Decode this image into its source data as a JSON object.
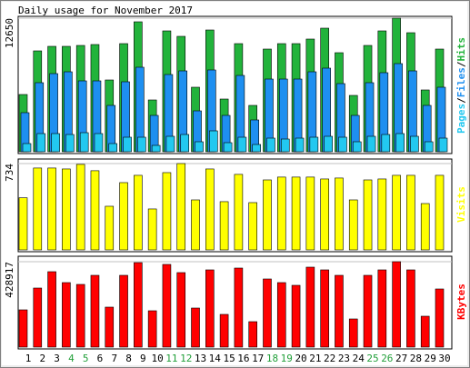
{
  "chart_data": [
    {
      "type": "bar",
      "title": "Daily usage for November 2017",
      "categories": [
        "1",
        "2",
        "3",
        "4",
        "5",
        "6",
        "7",
        "8",
        "9",
        "10",
        "11",
        "12",
        "13",
        "14",
        "15",
        "16",
        "17",
        "18",
        "19",
        "20",
        "21",
        "22",
        "23",
        "24",
        "25",
        "26",
        "27",
        "28",
        "29",
        "30"
      ],
      "ylim": [
        0,
        12650
      ],
      "yticks": [
        12650
      ],
      "legend_separator": "/",
      "series": [
        {
          "name": "Hits",
          "color": "#22b33b",
          "values": [
            5421,
            9552,
            9982,
            9982,
            10068,
            10154,
            6798,
            10240,
            12306,
            4905,
            11445,
            10929,
            6110,
            11531,
            4991,
            10240,
            4389,
            9724,
            10240,
            10240,
            10671,
            11703,
            9380,
            5335,
            10068,
            11445,
            12650,
            11273,
            5852,
            9724
          ]
        },
        {
          "name": "Files",
          "color": "#1e8ff0",
          "values": [
            3700,
            6540,
            7400,
            7572,
            6712,
            6712,
            4389,
            6626,
            8003,
            3442,
            7314,
            7658,
            3872,
            7745,
            3442,
            7228,
            3012,
            6884,
            6884,
            6884,
            7572,
            7917,
            6454,
            3442,
            6540,
            7486,
            8347,
            7658,
            4389,
            6110
          ]
        },
        {
          "name": "Pages",
          "color": "#22c8f0",
          "values": [
            775,
            1721,
            1721,
            1635,
            1807,
            1721,
            775,
            1377,
            1377,
            602,
            1463,
            1635,
            947,
            1979,
            860,
            1377,
            688,
            1291,
            1205,
            1291,
            1377,
            1463,
            1377,
            947,
            1463,
            1635,
            1721,
            1463,
            947,
            1291
          ]
        }
      ]
    },
    {
      "type": "bar",
      "categories": [
        "1",
        "2",
        "3",
        "4",
        "5",
        "6",
        "7",
        "8",
        "9",
        "10",
        "11",
        "12",
        "13",
        "14",
        "15",
        "16",
        "17",
        "18",
        "19",
        "20",
        "21",
        "22",
        "23",
        "24",
        "25",
        "26",
        "27",
        "28",
        "29",
        "30"
      ],
      "ylim": [
        0,
        734
      ],
      "yticks": [
        734
      ],
      "series": [
        {
          "name": "Visits",
          "color": "#ffff00",
          "values": [
            443,
            696,
            696,
            688,
            727,
            673,
            371,
            572,
            634,
            348,
            657,
            734,
            425,
            688,
            410,
            642,
            402,
            595,
            619,
            619,
            619,
            603,
            611,
            425,
            595,
            603,
            634,
            634,
            394,
            634
          ]
        }
      ]
    },
    {
      "type": "bar",
      "categories": [
        "1",
        "2",
        "3",
        "4",
        "5",
        "6",
        "7",
        "8",
        "9",
        "10",
        "11",
        "12",
        "13",
        "14",
        "15",
        "16",
        "17",
        "18",
        "19",
        "20",
        "21",
        "22",
        "23",
        "24",
        "25",
        "26",
        "27",
        "28",
        "29",
        "30"
      ],
      "category_colors": [
        "#000000",
        "#000000",
        "#000000",
        "#22a03a",
        "#22a03a",
        "#000000",
        "#000000",
        "#000000",
        "#000000",
        "#000000",
        "#22a03a",
        "#22a03a",
        "#000000",
        "#000000",
        "#000000",
        "#000000",
        "#000000",
        "#22a03a",
        "#22a03a",
        "#000000",
        "#000000",
        "#000000",
        "#000000",
        "#000000",
        "#22a03a",
        "#22a03a",
        "#000000",
        "#000000",
        "#000000",
        "#000000"
      ],
      "ylim": [
        0,
        428917
      ],
      "yticks": [
        428917
      ],
      "series": [
        {
          "name": "KBytes",
          "color": "#ff0000",
          "values": [
            187083,
            296595,
            378729,
            323973,
            314847,
            360477,
            200772,
            360477,
            424359,
            182520,
            415233,
            374166,
            196209,
            387855,
            164268,
            396981,
            127764,
            342225,
            323973,
            310284,
            401544,
            387855,
            360477,
            141453,
            360477,
            387855,
            428917,
            387855,
            155142,
            292032
          ]
        }
      ]
    }
  ]
}
